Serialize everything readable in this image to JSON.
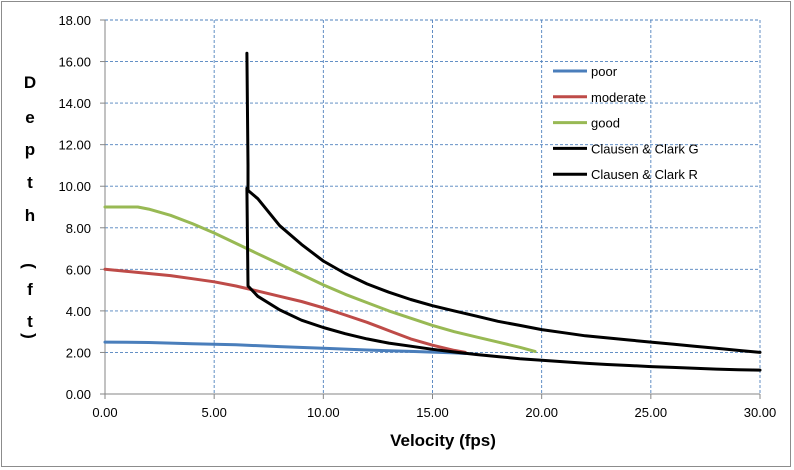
{
  "chart_data": {
    "type": "line",
    "title": "",
    "xlabel": "Velocity (fps)",
    "ylabel": "Depth (ft)",
    "ylabel_chars": [
      "D",
      "e",
      "p",
      "t",
      "h",
      "(",
      "f",
      "t",
      ")"
    ],
    "xlim": [
      0,
      30
    ],
    "ylim": [
      0,
      18
    ],
    "xticks": [
      0,
      5,
      10,
      15,
      20,
      25,
      30
    ],
    "yticks": [
      0,
      2,
      4,
      6,
      8,
      10,
      12,
      14,
      16,
      18
    ],
    "xtick_labels": [
      "0.00",
      "5.00",
      "10.00",
      "15.00",
      "20.00",
      "25.00",
      "30.00"
    ],
    "ytick_labels": [
      "0.00",
      "2.00",
      "4.00",
      "6.00",
      "8.00",
      "10.00",
      "12.00",
      "14.00",
      "16.00",
      "18.00"
    ],
    "grid": true,
    "legend_position": "top-right",
    "series": [
      {
        "name": "poor",
        "color": "#4a7ebb",
        "x": [
          0,
          2,
          4,
          6,
          8,
          10,
          12,
          14,
          16,
          16.5
        ],
        "y": [
          2.5,
          2.48,
          2.42,
          2.37,
          2.28,
          2.2,
          2.12,
          2.05,
          1.98,
          1.95
        ]
      },
      {
        "name": "moderate",
        "color": "#be4b48",
        "x": [
          0,
          1,
          2,
          3,
          4,
          5,
          6,
          7,
          8,
          9,
          10,
          11,
          12,
          13,
          14,
          15,
          16,
          16.5
        ],
        "y": [
          6.0,
          5.9,
          5.8,
          5.7,
          5.55,
          5.4,
          5.2,
          4.95,
          4.7,
          4.45,
          4.15,
          3.8,
          3.45,
          3.05,
          2.65,
          2.35,
          2.1,
          2.0
        ]
      },
      {
        "name": "good",
        "color": "#98b954",
        "x": [
          0,
          1,
          1.5,
          2,
          3,
          4,
          5,
          6,
          7,
          8,
          9,
          10,
          11,
          12,
          13,
          14,
          15,
          16,
          17,
          18,
          19,
          19.7
        ],
        "y": [
          9.0,
          9.0,
          9.0,
          8.9,
          8.6,
          8.2,
          7.75,
          7.25,
          6.75,
          6.25,
          5.75,
          5.25,
          4.8,
          4.4,
          4.0,
          3.65,
          3.3,
          3.0,
          2.75,
          2.5,
          2.25,
          2.05
        ]
      },
      {
        "name": "Clausen & Clark G",
        "color": "#000000",
        "x": [
          6.5,
          6.55,
          6.55,
          7,
          8,
          9,
          10,
          11,
          12,
          13,
          14,
          15,
          16,
          17,
          18,
          19,
          20,
          21,
          22,
          23,
          24,
          25,
          26,
          27,
          28,
          29,
          30
        ],
        "y": [
          16.4,
          11.0,
          9.8,
          9.4,
          8.1,
          7.2,
          6.4,
          5.8,
          5.3,
          4.9,
          4.55,
          4.25,
          4.0,
          3.75,
          3.5,
          3.3,
          3.1,
          2.95,
          2.8,
          2.7,
          2.6,
          2.5,
          2.4,
          2.3,
          2.2,
          2.1,
          2.0
        ]
      },
      {
        "name": "Clausen & Clark R",
        "color": "#000000",
        "x": [
          6.5,
          6.55,
          7,
          8,
          9,
          10,
          11,
          12,
          13,
          14,
          15,
          16,
          17,
          18,
          19,
          20,
          21,
          22,
          23,
          24,
          25,
          26,
          27,
          28,
          29,
          30
        ],
        "y": [
          9.9,
          5.2,
          4.7,
          4.05,
          3.55,
          3.2,
          2.9,
          2.65,
          2.45,
          2.3,
          2.15,
          2.02,
          1.9,
          1.8,
          1.7,
          1.62,
          1.55,
          1.48,
          1.42,
          1.37,
          1.32,
          1.28,
          1.24,
          1.2,
          1.17,
          1.15
        ]
      }
    ]
  }
}
